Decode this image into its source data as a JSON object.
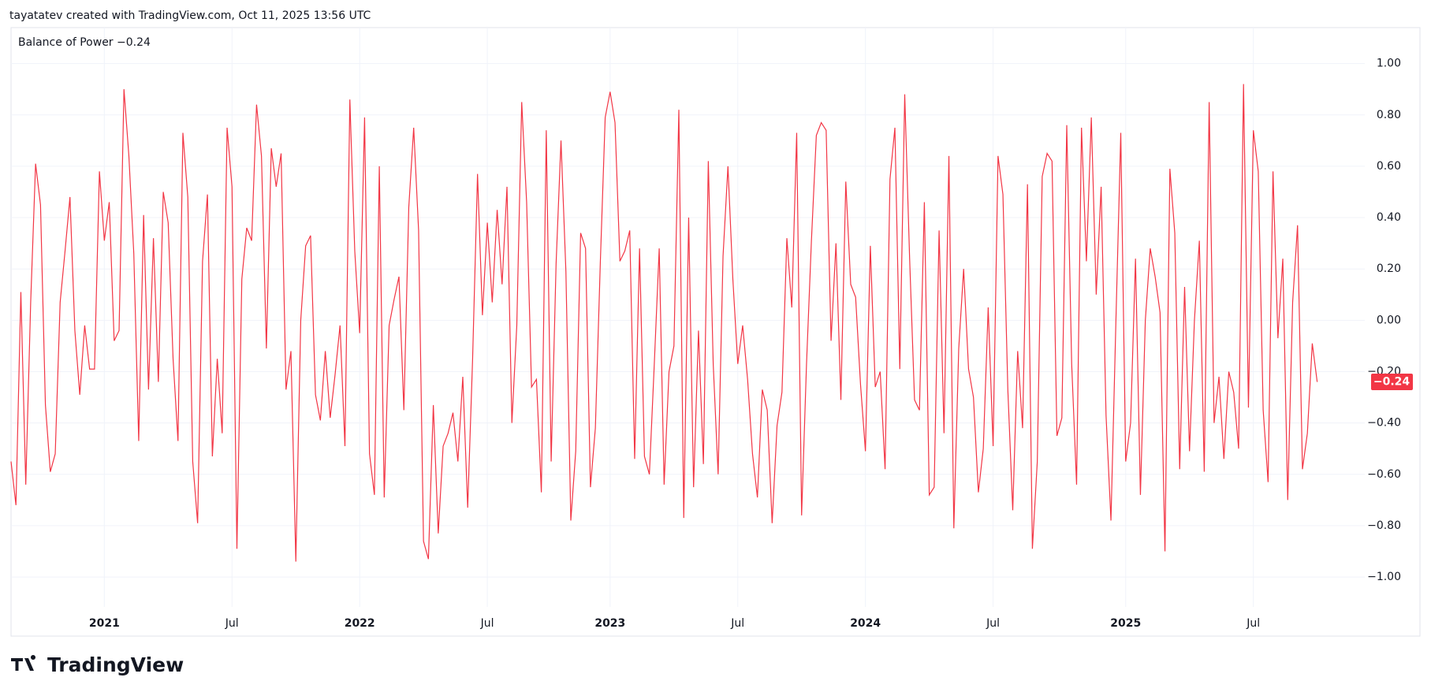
{
  "header": "tayatatev created with TradingView.com, Oct 11, 2025 13:56 UTC",
  "logo": "TradingView",
  "chart_data": {
    "type": "line",
    "categories": [
      null,
      null,
      null,
      null,
      null,
      null,
      null,
      null,
      null,
      null,
      null,
      null,
      null,
      null,
      null,
      null,
      null,
      null,
      null,
      "2021",
      null,
      null,
      null,
      null,
      null,
      null,
      null,
      null,
      null,
      null,
      null,
      null,
      null,
      null,
      null,
      null,
      null,
      null,
      null,
      null,
      null,
      null,
      null,
      null,
      null,
      "Jul",
      null,
      null,
      null,
      null,
      null,
      null,
      null,
      null,
      null,
      null,
      null,
      null,
      null,
      null,
      null,
      null,
      null,
      null,
      null,
      null,
      null,
      null,
      null,
      null,
      null,
      "2022",
      null,
      null,
      null,
      null,
      null,
      null,
      null,
      null,
      null,
      null,
      null,
      null,
      null,
      null,
      null,
      null,
      null,
      null,
      null,
      null,
      null,
      null,
      null,
      null,
      null,
      "Jul",
      null,
      null,
      null,
      null,
      null,
      null,
      null,
      null,
      null,
      null,
      null,
      null,
      null,
      null,
      null,
      null,
      null,
      null,
      null,
      null,
      null,
      null,
      null,
      null,
      "2023",
      null,
      null,
      null,
      null,
      null,
      null,
      null,
      null,
      null,
      null,
      null,
      null,
      null,
      null,
      null,
      null,
      null,
      null,
      null,
      null,
      null,
      null,
      null,
      null,
      null,
      "Jul",
      null,
      null,
      null,
      null,
      null,
      null,
      null,
      null,
      null,
      null,
      null,
      null,
      null,
      null,
      null,
      null,
      null,
      null,
      null,
      null,
      null,
      null,
      null,
      null,
      null,
      "2024",
      null,
      null,
      null,
      null,
      null,
      null,
      null,
      null,
      null,
      null,
      null,
      null,
      null,
      null,
      null,
      null,
      null,
      null,
      null,
      null,
      null,
      null,
      null,
      null,
      null,
      "Jul",
      null,
      null,
      null,
      null,
      null,
      null,
      null,
      null,
      null,
      null,
      null,
      null,
      null,
      null,
      null,
      null,
      null,
      null,
      null,
      null,
      null,
      null,
      null,
      null,
      null,
      null,
      "2025",
      null,
      null,
      null,
      null,
      null,
      null,
      null,
      null,
      null,
      null,
      null,
      null,
      null,
      null,
      null,
      null,
      null,
      null,
      null,
      null,
      null,
      null,
      null,
      null,
      null,
      "Jul",
      null,
      null,
      null,
      null,
      null,
      null,
      null,
      null,
      null,
      null,
      null,
      null,
      null
    ],
    "series": [
      {
        "name": "Balance of Power",
        "color": "#f23645",
        "last_label": "−0.24",
        "values": [
          -0.55,
          -0.72,
          0.11,
          -0.64,
          0.07,
          0.61,
          0.45,
          -0.33,
          -0.59,
          -0.52,
          0.07,
          0.27,
          0.48,
          -0.04,
          -0.29,
          -0.02,
          -0.19,
          -0.19,
          0.58,
          0.31,
          0.46,
          -0.08,
          -0.04,
          0.9,
          0.64,
          0.26,
          -0.47,
          0.41,
          -0.27,
          0.32,
          -0.24,
          0.5,
          0.38,
          -0.15,
          -0.47,
          0.73,
          0.48,
          -0.55,
          -0.79,
          0.23,
          0.49,
          -0.53,
          -0.15,
          -0.44,
          0.75,
          0.52,
          -0.89,
          0.16,
          0.36,
          0.31,
          0.84,
          0.64,
          -0.11,
          0.67,
          0.52,
          0.65,
          -0.27,
          -0.12,
          -0.94,
          0.0,
          0.29,
          0.33,
          -0.29,
          -0.39,
          -0.12,
          -0.38,
          -0.21,
          -0.02,
          -0.49,
          0.86,
          0.27,
          -0.05,
          0.79,
          -0.52,
          -0.68,
          0.6,
          -0.69,
          -0.02,
          0.08,
          0.17,
          -0.35,
          0.44,
          0.75,
          0.35,
          -0.86,
          -0.93,
          -0.33,
          -0.83,
          -0.49,
          -0.44,
          -0.36,
          -0.55,
          -0.22,
          -0.73,
          -0.15,
          0.57,
          0.02,
          0.38,
          0.07,
          0.43,
          0.14,
          0.52,
          -0.4,
          -0.02,
          0.85,
          0.46,
          -0.26,
          -0.23,
          -0.67,
          0.74,
          -0.55,
          0.22,
          0.7,
          0.19,
          -0.78,
          -0.51,
          0.34,
          0.28,
          -0.65,
          -0.42,
          0.22,
          0.79,
          0.89,
          0.77,
          0.23,
          0.27,
          0.35,
          -0.54,
          0.28,
          -0.53,
          -0.6,
          -0.17,
          0.28,
          -0.64,
          -0.2,
          -0.1,
          0.82,
          -0.77,
          0.4,
          -0.65,
          -0.04,
          -0.56,
          0.62,
          -0.17,
          -0.6,
          0.25,
          0.6,
          0.16,
          -0.17,
          -0.02,
          -0.23,
          -0.52,
          -0.69,
          -0.27,
          -0.35,
          -0.79,
          -0.41,
          -0.28,
          0.32,
          0.05,
          0.73,
          -0.76,
          -0.17,
          0.31,
          0.72,
          0.77,
          0.74,
          -0.08,
          0.3,
          -0.31,
          0.54,
          0.14,
          0.09,
          -0.25,
          -0.51,
          0.29,
          -0.26,
          -0.2,
          -0.58,
          0.55,
          0.75,
          -0.19,
          0.88,
          0.24,
          -0.31,
          -0.35,
          0.46,
          -0.68,
          -0.65,
          0.35,
          -0.44,
          0.64,
          -0.81,
          -0.11,
          0.2,
          -0.19,
          -0.3,
          -0.67,
          -0.5,
          0.05,
          -0.49,
          0.64,
          0.49,
          -0.27,
          -0.74,
          -0.12,
          -0.42,
          0.53,
          -0.89,
          -0.55,
          0.56,
          0.65,
          0.62,
          -0.45,
          -0.38,
          0.76,
          -0.17,
          -0.64,
          0.75,
          0.23,
          0.79,
          0.1,
          0.52,
          -0.37,
          -0.78,
          -0.01,
          0.73,
          -0.55,
          -0.4,
          0.24,
          -0.68,
          0.0,
          0.28,
          0.17,
          0.03,
          -0.9,
          0.59,
          0.34,
          -0.58,
          0.13,
          -0.51,
          0.0,
          0.31,
          -0.59,
          0.85,
          -0.4,
          -0.22,
          -0.54,
          -0.2,
          -0.28,
          -0.5,
          0.92,
          -0.34,
          0.74,
          0.58,
          -0.35,
          -0.63,
          0.58,
          -0.07,
          0.24,
          -0.7,
          0.07,
          0.37,
          -0.58,
          -0.44,
          -0.09,
          -0.24
        ]
      }
    ],
    "ylim": [
      -1.23,
      1.14
    ],
    "yticks": [
      {
        "value": 1.0,
        "label": "1.00"
      },
      {
        "value": 0.8,
        "label": "0.80"
      },
      {
        "value": 0.6,
        "label": "0.60"
      },
      {
        "value": 0.4,
        "label": "0.40"
      },
      {
        "value": 0.2,
        "label": "0.20"
      },
      {
        "value": 0.0,
        "label": "0.00"
      },
      {
        "value": -0.2,
        "label": "−0.20"
      },
      {
        "value": -0.4,
        "label": "−0.40"
      },
      {
        "value": -0.6,
        "label": "−0.60"
      },
      {
        "value": -0.8,
        "label": "−0.80"
      },
      {
        "value": -1.0,
        "label": "−1.00"
      }
    ],
    "grid": true
  }
}
